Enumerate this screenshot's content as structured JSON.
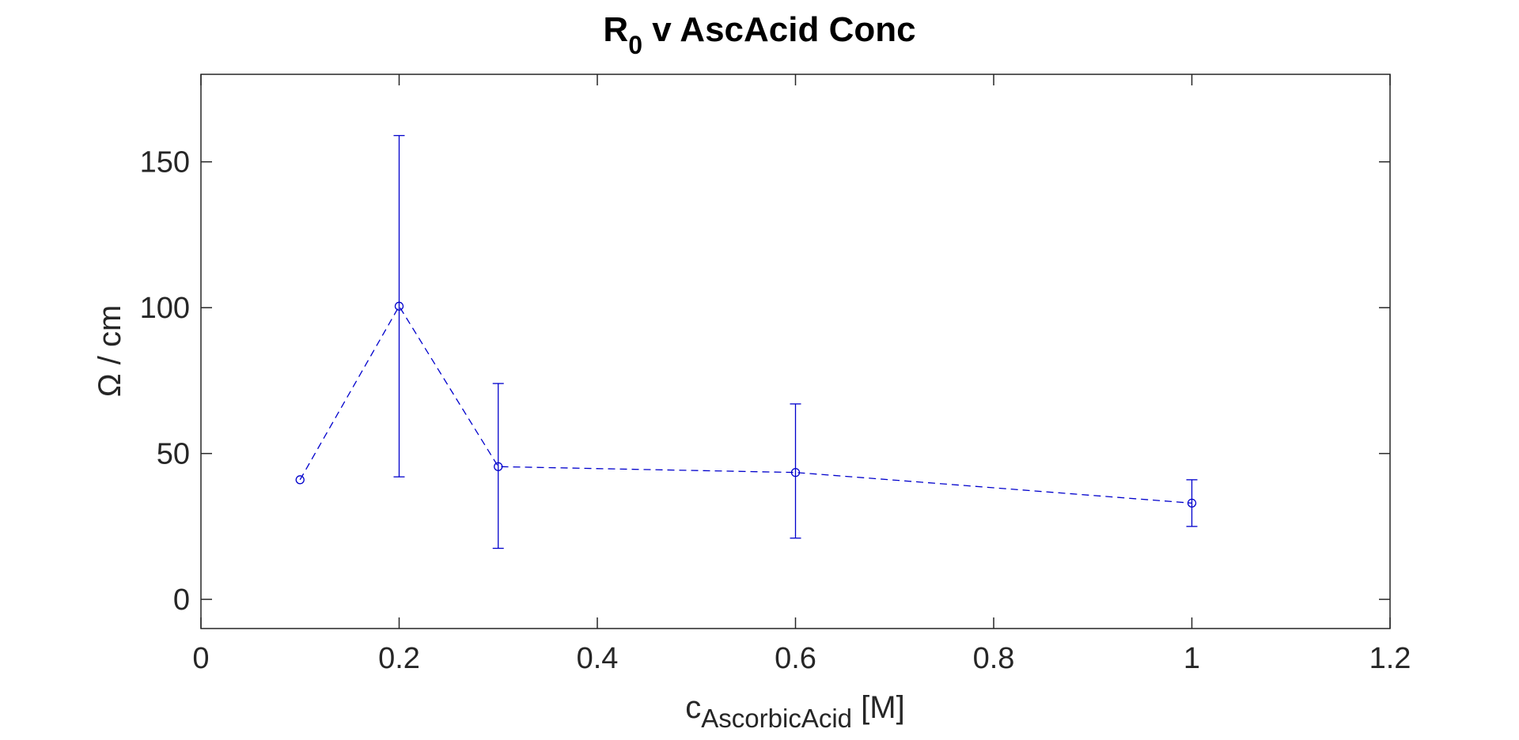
{
  "chart_data": {
    "type": "line",
    "title": {
      "main": "R",
      "sub": "0",
      "rest": " v AscAcid Conc"
    },
    "xlabel": {
      "main": "c",
      "sub": "AscorbicAcid",
      "rest": " [M]"
    },
    "ylabel": "Ω / cm",
    "xlim": [
      0,
      1.2
    ],
    "ylim": [
      -10,
      180
    ],
    "xticks": [
      0,
      0.2,
      0.4,
      0.6,
      0.8,
      1,
      1.2
    ],
    "xtick_labels": [
      "0",
      "0.2",
      "0.4",
      "0.6",
      "0.8",
      "1",
      "1.2"
    ],
    "yticks": [
      0,
      50,
      100,
      150
    ],
    "ytick_labels": [
      "0",
      "50",
      "100",
      "150"
    ],
    "grid": false,
    "legend": false,
    "series": [
      {
        "color": "#0000cc",
        "line_style": "dashed",
        "marker": "circle",
        "x": [
          0.1,
          0.2,
          0.3,
          0.6,
          1.0
        ],
        "y": [
          41,
          100.5,
          45.5,
          43.5,
          33
        ],
        "error_low": [
          null,
          42,
          17.5,
          21,
          25
        ],
        "error_high": [
          null,
          159,
          74,
          67,
          41
        ]
      }
    ]
  }
}
